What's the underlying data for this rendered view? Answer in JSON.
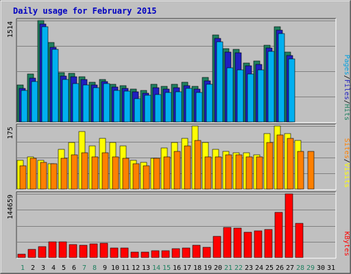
{
  "chart_data": {
    "type": "bar",
    "title": "Daily usage for February 2015",
    "categories": [
      "1",
      "2",
      "3",
      "4",
      "5",
      "6",
      "7",
      "8",
      "9",
      "10",
      "11",
      "12",
      "13",
      "14",
      "15",
      "16",
      "17",
      "18",
      "19",
      "20",
      "21",
      "22",
      "23",
      "24",
      "25",
      "26",
      "27",
      "28",
      "29",
      "30",
      "31"
    ],
    "weekend_days": [
      "1",
      "7",
      "8",
      "14",
      "15",
      "21",
      "22",
      "28",
      "29"
    ],
    "panels": [
      {
        "id": "top",
        "ymax_label": "1514",
        "ylim": [
          0,
          1514
        ],
        "grid": true,
        "legend_side": "right",
        "legend": [
          {
            "text": "Pages",
            "color": "#00a0e0"
          },
          {
            "text": "/",
            "color": "#000000"
          },
          {
            "text": "Files",
            "color": "#2020c0"
          },
          {
            "text": "/",
            "color": "#000000"
          },
          {
            "text": "Hits",
            "color": "#208060"
          }
        ],
        "series": [
          {
            "role": "hits",
            "color": "#208060",
            "values": [
              550,
              720,
              1514,
              1190,
              740,
              730,
              680,
              590,
              630,
              560,
              540,
              490,
              470,
              560,
              530,
              560,
              590,
              530,
              660,
              1300,
              1090,
              1080,
              880,
              910,
              1150,
              1420,
              1040,
              0,
              0,
              0,
              0
            ]
          },
          {
            "role": "files",
            "color": "#2020c0",
            "values": [
              500,
              650,
              1460,
              1120,
              690,
              680,
              630,
              550,
              600,
              520,
              500,
              450,
              430,
              510,
              490,
              510,
              540,
              490,
              610,
              1250,
              1040,
              1030,
              840,
              860,
              1100,
              1370,
              990,
              0,
              0,
              0,
              0
            ]
          },
          {
            "role": "pages",
            "color": "#00b0f0",
            "values": [
              470,
              600,
              1420,
              1080,
              630,
              570,
              550,
              510,
              570,
              470,
              460,
              350,
              400,
              410,
              440,
              450,
              500,
              440,
              560,
              1200,
              810,
              780,
              720,
              780,
              1050,
              1320,
              940,
              0,
              0,
              0,
              0
            ]
          }
        ]
      },
      {
        "id": "middle",
        "ymax_label": "175",
        "ylim": [
          0,
          175
        ],
        "grid": true,
        "legend_side": "right",
        "legend": [
          {
            "text": "Sites",
            "color": "#ff8000"
          },
          {
            "text": "/",
            "color": "#000000"
          },
          {
            "text": "Visits",
            "color": "#ffff00"
          }
        ],
        "series": [
          {
            "role": "visits",
            "color": "#ffff00",
            "values": [
              80,
              90,
              80,
              70,
              110,
              130,
              160,
              120,
              140,
              130,
              120,
              80,
              75,
              85,
              115,
              130,
              140,
              175,
              130,
              110,
              105,
              100,
              100,
              95,
              155,
              175,
              155,
              135,
              0,
              0,
              0
            ]
          },
          {
            "role": "sites",
            "color": "#ff8000",
            "values": [
              65,
              85,
              75,
              70,
              85,
              95,
              100,
              90,
              100,
              90,
              85,
              70,
              65,
              85,
              90,
              105,
              120,
              135,
              90,
              90,
              95,
              95,
              90,
              90,
              130,
              150,
              140,
              105,
              105,
              0,
              0
            ]
          }
        ]
      },
      {
        "id": "bottom",
        "ymax_label": "144659",
        "ylim": [
          0,
          144659
        ],
        "grid": true,
        "legend_side": "right",
        "legend": [
          {
            "text": "KBytes",
            "color": "#ff0000"
          }
        ],
        "series": [
          {
            "role": "kbytes",
            "color": "#ff0000",
            "values": [
              8000,
              18000,
              25000,
              36000,
              36000,
              30000,
              28000,
              31000,
              33000,
              22000,
              22000,
              13000,
              13000,
              15000,
              16000,
              20000,
              21000,
              28000,
              23000,
              48000,
              69000,
              67000,
              57000,
              61000,
              64000,
              103000,
              144659,
              77000,
              0,
              0,
              0
            ]
          }
        ]
      }
    ]
  }
}
